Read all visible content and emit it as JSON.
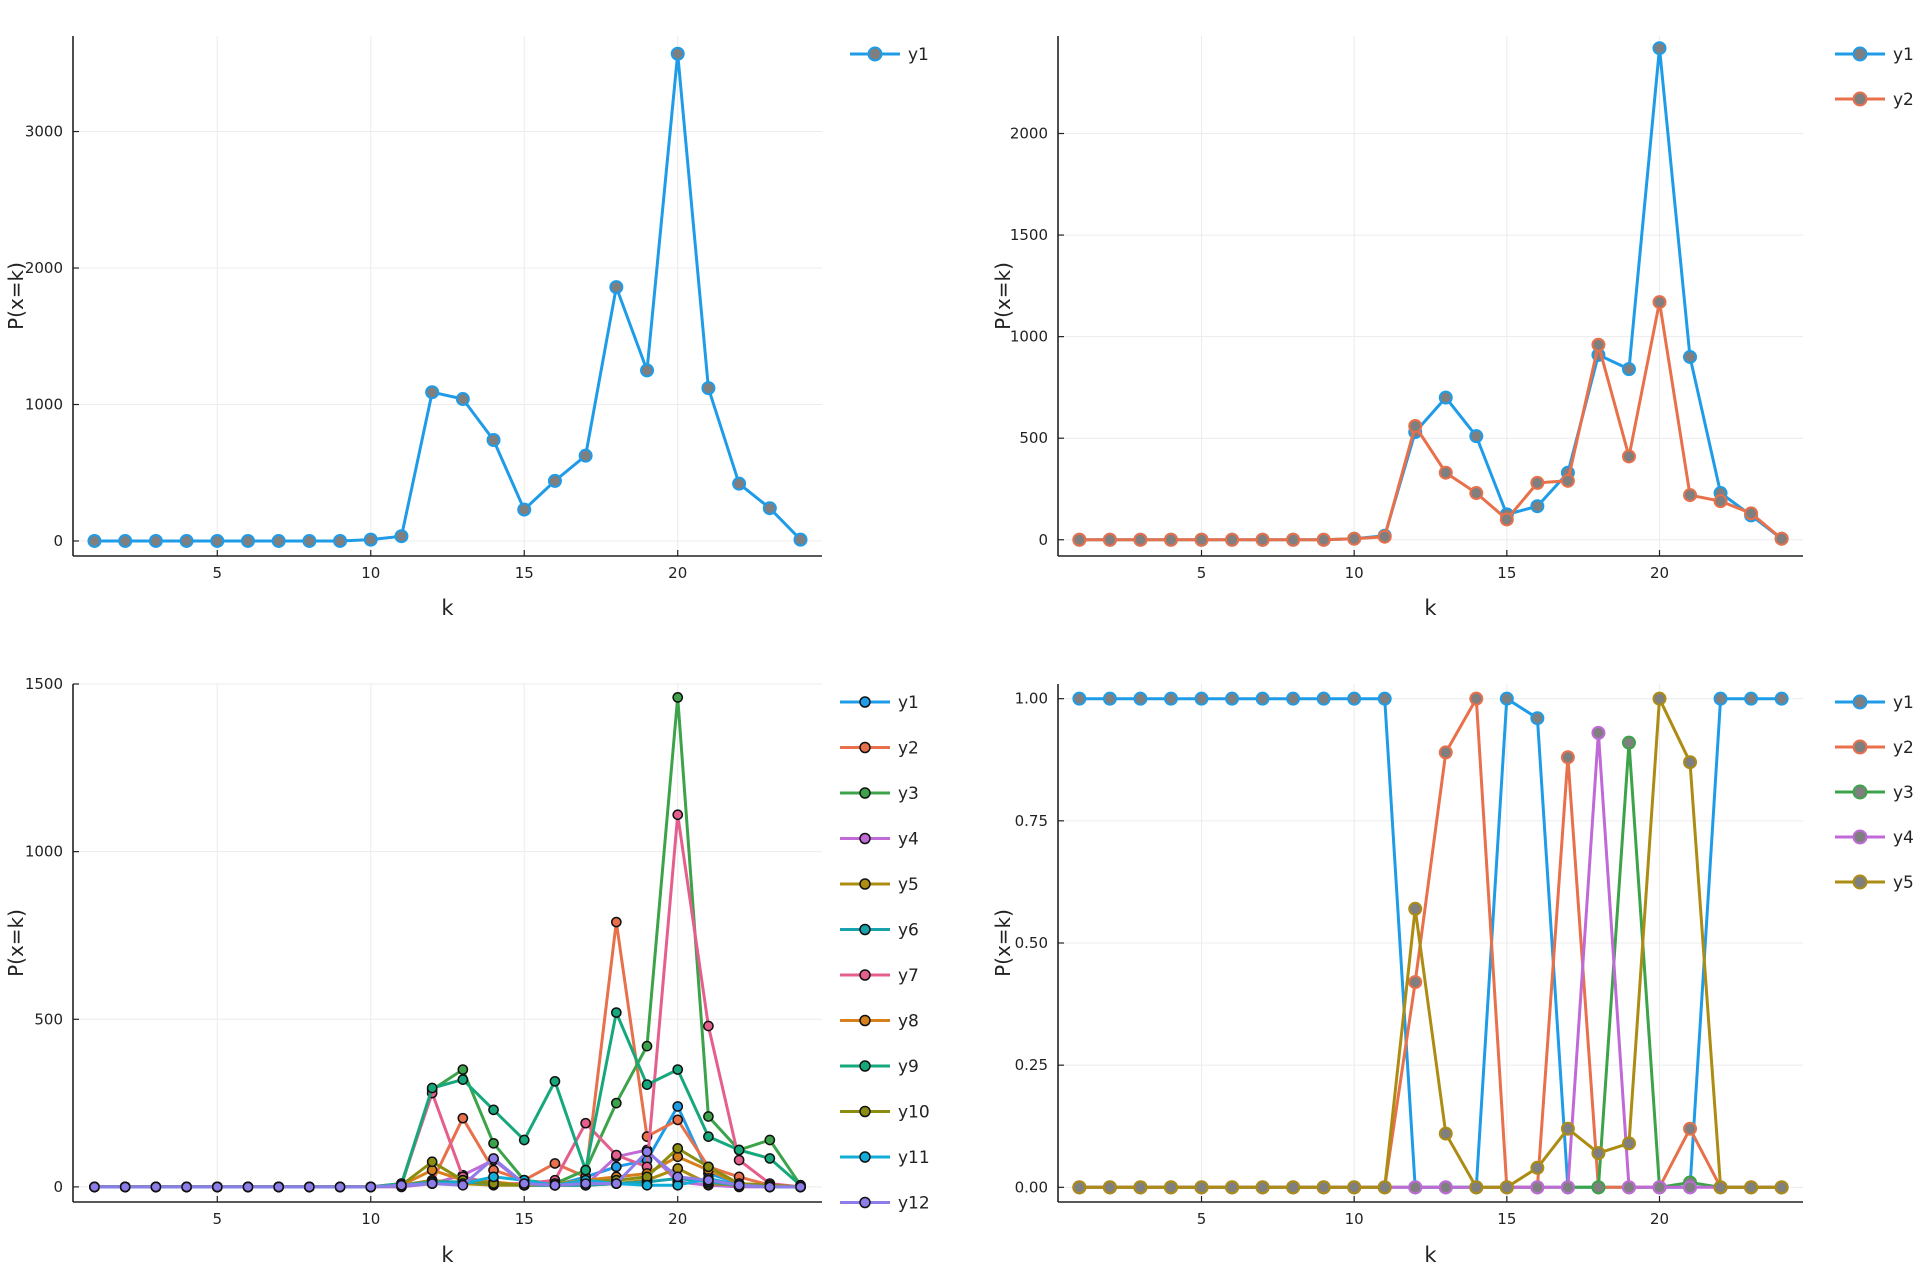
{
  "chart_data": [
    {
      "type": "line",
      "title": "",
      "xlabel": "k",
      "ylabel": "P(x=k)",
      "xlim": [
        0.3,
        24.7
      ],
      "ylim": [
        -110,
        3700
      ],
      "xticks": [
        5,
        10,
        15,
        20
      ],
      "yticks": [
        0,
        1000,
        2000,
        3000
      ],
      "xtick_labels": [
        "5",
        "10",
        "15",
        "20"
      ],
      "ytick_labels": [
        "0",
        "1000",
        "2000",
        "3000"
      ],
      "grid": true,
      "legend_position": "outside-top-right",
      "marker": "large",
      "x": [
        1,
        2,
        3,
        4,
        5,
        6,
        7,
        8,
        9,
        10,
        11,
        12,
        13,
        14,
        15,
        16,
        17,
        18,
        19,
        20,
        21,
        22,
        23,
        24
      ],
      "series": [
        {
          "name": "y1",
          "color": "#1f9ce8",
          "values": [
            0,
            0,
            0,
            0,
            0,
            0,
            0,
            0,
            0,
            10,
            35,
            1090,
            1040,
            740,
            230,
            440,
            625,
            1860,
            1250,
            3570,
            1120,
            420,
            240,
            10
          ]
        }
      ]
    },
    {
      "type": "line",
      "title": "",
      "xlabel": "k",
      "ylabel": "P(x=k)",
      "xlim": [
        0.3,
        24.7
      ],
      "ylim": [
        -80,
        2480
      ],
      "xticks": [
        5,
        10,
        15,
        20
      ],
      "yticks": [
        0,
        500,
        1000,
        1500,
        2000
      ],
      "xtick_labels": [
        "5",
        "10",
        "15",
        "20"
      ],
      "ytick_labels": [
        "0",
        "500",
        "1000",
        "1500",
        "2000"
      ],
      "grid": true,
      "legend_position": "outside-top-right",
      "marker": "large",
      "x": [
        1,
        2,
        3,
        4,
        5,
        6,
        7,
        8,
        9,
        10,
        11,
        12,
        13,
        14,
        15,
        16,
        17,
        18,
        19,
        20,
        21,
        22,
        23,
        24
      ],
      "series": [
        {
          "name": "y1",
          "color": "#1f9ce8",
          "values": [
            0,
            0,
            0,
            0,
            0,
            0,
            0,
            0,
            0,
            5,
            20,
            530,
            700,
            510,
            125,
            165,
            330,
            910,
            840,
            2420,
            900,
            230,
            120,
            5
          ]
        },
        {
          "name": "y2",
          "color": "#e8704a",
          "values": [
            0,
            0,
            0,
            0,
            0,
            0,
            0,
            0,
            0,
            5,
            15,
            560,
            330,
            230,
            100,
            280,
            290,
            960,
            410,
            1170,
            220,
            190,
            130,
            5
          ]
        }
      ]
    },
    {
      "type": "line",
      "title": "",
      "xlabel": "k",
      "ylabel": "P(x=k)",
      "xlim": [
        0.3,
        24.7
      ],
      "ylim": [
        -45,
        1500
      ],
      "xticks": [
        5,
        10,
        15,
        20
      ],
      "yticks": [
        0,
        500,
        1000,
        1500
      ],
      "xtick_labels": [
        "5",
        "10",
        "15",
        "20"
      ],
      "ytick_labels": [
        "0",
        "500",
        "1000",
        "1500"
      ],
      "grid": true,
      "legend_position": "outside-top-right",
      "marker": "small-outlined",
      "x": [
        1,
        2,
        3,
        4,
        5,
        6,
        7,
        8,
        9,
        10,
        11,
        12,
        13,
        14,
        15,
        16,
        17,
        18,
        19,
        20,
        21,
        22,
        23,
        24
      ],
      "series": [
        {
          "name": "y1",
          "color": "#1f9ce8",
          "values": [
            0,
            0,
            0,
            0,
            0,
            0,
            0,
            0,
            0,
            0,
            5,
            10,
            15,
            10,
            5,
            5,
            30,
            60,
            80,
            240,
            40,
            10,
            5,
            0
          ]
        },
        {
          "name": "y2",
          "color": "#e8704a",
          "values": [
            0,
            0,
            0,
            0,
            0,
            0,
            0,
            0,
            0,
            0,
            5,
            15,
            205,
            50,
            20,
            70,
            30,
            790,
            150,
            200,
            60,
            30,
            5,
            0
          ]
        },
        {
          "name": "y3",
          "color": "#3ca34a",
          "values": [
            0,
            0,
            0,
            0,
            0,
            0,
            0,
            0,
            0,
            0,
            5,
            290,
            350,
            130,
            20,
            10,
            50,
            250,
            420,
            1460,
            210,
            110,
            140,
            5
          ]
        },
        {
          "name": "y4",
          "color": "#c06ad8",
          "values": [
            0,
            0,
            0,
            0,
            0,
            0,
            0,
            0,
            0,
            0,
            0,
            10,
            35,
            80,
            10,
            5,
            5,
            90,
            110,
            15,
            5,
            0,
            0,
            0
          ]
        },
        {
          "name": "y5",
          "color": "#ac8c12",
          "values": [
            0,
            0,
            0,
            0,
            0,
            0,
            0,
            0,
            0,
            0,
            5,
            20,
            10,
            5,
            5,
            5,
            5,
            10,
            20,
            55,
            10,
            5,
            0,
            0
          ]
        },
        {
          "name": "y6",
          "color": "#18a3ac",
          "values": [
            0,
            0,
            0,
            0,
            0,
            0,
            0,
            0,
            0,
            0,
            5,
            15,
            15,
            10,
            5,
            5,
            5,
            10,
            15,
            25,
            15,
            5,
            0,
            0
          ]
        },
        {
          "name": "y7",
          "color": "#e45f8d",
          "values": [
            0,
            0,
            0,
            0,
            0,
            0,
            0,
            0,
            0,
            0,
            10,
            280,
            30,
            10,
            10,
            20,
            190,
            95,
            60,
            1110,
            480,
            80,
            10,
            0
          ]
        },
        {
          "name": "y8",
          "color": "#d6801c",
          "values": [
            0,
            0,
            0,
            0,
            0,
            0,
            0,
            0,
            0,
            0,
            5,
            50,
            20,
            15,
            5,
            10,
            20,
            30,
            40,
            90,
            50,
            10,
            0,
            0
          ]
        },
        {
          "name": "y9",
          "color": "#16a87c",
          "values": [
            0,
            0,
            0,
            0,
            0,
            0,
            0,
            0,
            0,
            0,
            10,
            295,
            320,
            230,
            140,
            315,
            50,
            520,
            305,
            350,
            150,
            110,
            85,
            5
          ]
        },
        {
          "name": "y10",
          "color": "#8a8d10",
          "values": [
            0,
            0,
            0,
            0,
            0,
            0,
            0,
            0,
            0,
            0,
            5,
            75,
            20,
            10,
            5,
            10,
            15,
            20,
            30,
            115,
            60,
            10,
            5,
            0
          ]
        },
        {
          "name": "y11",
          "color": "#10aed8",
          "values": [
            0,
            0,
            0,
            0,
            0,
            0,
            0,
            0,
            0,
            0,
            5,
            10,
            10,
            30,
            20,
            5,
            20,
            10,
            5,
            5,
            25,
            5,
            0,
            0
          ]
        },
        {
          "name": "y12",
          "color": "#8d7de8",
          "values": [
            0,
            0,
            0,
            0,
            0,
            0,
            0,
            0,
            0,
            0,
            5,
            10,
            5,
            85,
            10,
            5,
            10,
            10,
            105,
            30,
            20,
            5,
            0,
            0
          ]
        }
      ]
    },
    {
      "type": "line",
      "title": "",
      "xlabel": "k",
      "ylabel": "P(x=k)",
      "xlim": [
        0.3,
        24.7
      ],
      "ylim": [
        -0.03,
        1.03
      ],
      "xticks": [
        5,
        10,
        15,
        20
      ],
      "yticks": [
        0,
        0.25,
        0.5,
        0.75,
        1
      ],
      "xtick_labels": [
        "5",
        "10",
        "15",
        "20"
      ],
      "ytick_labels": [
        "0.00",
        "0.25",
        "0.50",
        "0.75",
        "1.00"
      ],
      "grid": true,
      "legend_position": "outside-top-right",
      "marker": "large",
      "x": [
        1,
        2,
        3,
        4,
        5,
        6,
        7,
        8,
        9,
        10,
        11,
        12,
        13,
        14,
        15,
        16,
        17,
        18,
        19,
        20,
        21,
        22,
        23,
        24
      ],
      "series": [
        {
          "name": "y1",
          "color": "#1f9ce8",
          "values": [
            1,
            1,
            1,
            1,
            1,
            1,
            1,
            1,
            1,
            1,
            1,
            0,
            0,
            0,
            1,
            0.96,
            0,
            0,
            0,
            0,
            0,
            1,
            1,
            1
          ]
        },
        {
          "name": "y2",
          "color": "#e8704a",
          "values": [
            0,
            0,
            0,
            0,
            0,
            0,
            0,
            0,
            0,
            0,
            0,
            0.42,
            0.89,
            1,
            0,
            0,
            0.88,
            0,
            0,
            0,
            0.12,
            0,
            0,
            0
          ]
        },
        {
          "name": "y3",
          "color": "#3ca34a",
          "values": [
            0,
            0,
            0,
            0,
            0,
            0,
            0,
            0,
            0,
            0,
            0,
            0,
            0,
            0,
            0,
            0,
            0,
            0,
            0.91,
            0,
            0.01,
            0,
            0,
            0
          ]
        },
        {
          "name": "y4",
          "color": "#c06ad8",
          "values": [
            0,
            0,
            0,
            0,
            0,
            0,
            0,
            0,
            0,
            0,
            0,
            0,
            0,
            0,
            0,
            0,
            0,
            0.93,
            0,
            0,
            0,
            0,
            0,
            0
          ]
        },
        {
          "name": "y5",
          "color": "#ac8c12",
          "values": [
            0,
            0,
            0,
            0,
            0,
            0,
            0,
            0,
            0,
            0,
            0,
            0.57,
            0.11,
            0,
            0,
            0.04,
            0.12,
            0.07,
            0.09,
            1,
            0.87,
            0,
            0,
            0
          ]
        }
      ]
    }
  ]
}
